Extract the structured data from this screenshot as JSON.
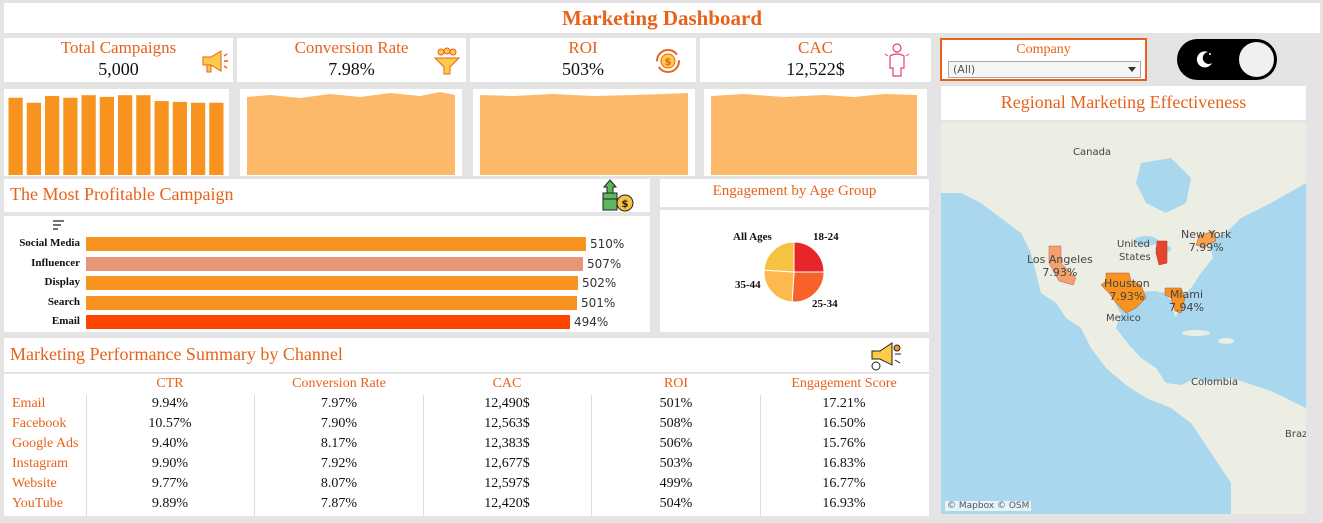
{
  "header": {
    "title": "Marketing Dashboard"
  },
  "kpis": [
    {
      "label": "Total Campaigns",
      "value": "5,000",
      "icon": "megaphone-icon"
    },
    {
      "label": "Conversion Rate",
      "value": "7.98%",
      "icon": "funnel-icon"
    },
    {
      "label": "ROI",
      "value": "503%",
      "icon": "refresh-dollar-icon"
    },
    {
      "label": "CAC",
      "value": "12,522$",
      "icon": "person-icon"
    }
  ],
  "sparklines": {
    "campaigns_bars": [
      0.92,
      0.86,
      0.94,
      0.92,
      0.95,
      0.93,
      0.95,
      0.95,
      0.88,
      0.87,
      0.86,
      0.86
    ],
    "area_color": "#fdb96a",
    "bar_color": "#f7931e"
  },
  "profitable": {
    "title": "The Most Profitable Campaign",
    "chart_data": {
      "type": "bar",
      "categories": [
        "Social Media",
        "Influencer",
        "Display",
        "Search",
        "Email"
      ],
      "values": [
        510,
        507,
        502,
        501,
        494
      ],
      "labels": [
        "510%",
        "507%",
        "502%",
        "501%",
        "494%"
      ],
      "colors": [
        "#f7931e",
        "#e8957a",
        "#f7931e",
        "#f7931e",
        "#ff4500"
      ],
      "xlim": [
        0,
        560
      ]
    }
  },
  "age": {
    "title": "Engagement by Age Group",
    "chart_data": {
      "type": "pie",
      "labels": [
        "18-24",
        "25-34",
        "35-44",
        "All Ages"
      ],
      "values": [
        25,
        26,
        25,
        24
      ],
      "colors": [
        "#e8262a",
        "#f7622a",
        "#fdb94e",
        "#f5c242"
      ]
    }
  },
  "performance": {
    "title": "Marketing Performance Summary by Channel",
    "columns": [
      "CTR",
      "Conversion Rate",
      "CAC",
      "ROI",
      "Engagement Score"
    ],
    "rows": [
      {
        "channel": "Email",
        "values": [
          "9.94%",
          "7.97%",
          "12,490$",
          "501%",
          "17.21%"
        ]
      },
      {
        "channel": "Facebook",
        "values": [
          "10.57%",
          "7.90%",
          "12,563$",
          "508%",
          "16.50%"
        ]
      },
      {
        "channel": "Google Ads",
        "values": [
          "9.40%",
          "8.17%",
          "12,383$",
          "506%",
          "15.76%"
        ]
      },
      {
        "channel": "Instagram",
        "values": [
          "9.90%",
          "7.92%",
          "12,677$",
          "503%",
          "16.83%"
        ]
      },
      {
        "channel": "Website",
        "values": [
          "9.77%",
          "8.07%",
          "12,597$",
          "499%",
          "16.77%"
        ]
      },
      {
        "channel": "YouTube",
        "values": [
          "9.89%",
          "7.87%",
          "12,420$",
          "504%",
          "16.93%"
        ]
      }
    ]
  },
  "filter": {
    "label": "Company",
    "selected": "(All)"
  },
  "theme_toggle": {
    "state": "dark"
  },
  "map": {
    "title": "Regional Marketing Effectiveness",
    "labels": {
      "canada": "Canada",
      "us_line1": "United",
      "us_line2": "States",
      "mexico": "Mexico",
      "colombia": "Colombia",
      "brazil": "Braz",
      "attribution": "© Mapbox © OSM"
    },
    "cities": [
      {
        "name": "Los Angeles",
        "value": "7.93%"
      },
      {
        "name": "New York",
        "value": "7.99%"
      },
      {
        "name": "Houston",
        "value": "7.93%"
      },
      {
        "name": "Miami",
        "value": "7.94%"
      }
    ]
  }
}
